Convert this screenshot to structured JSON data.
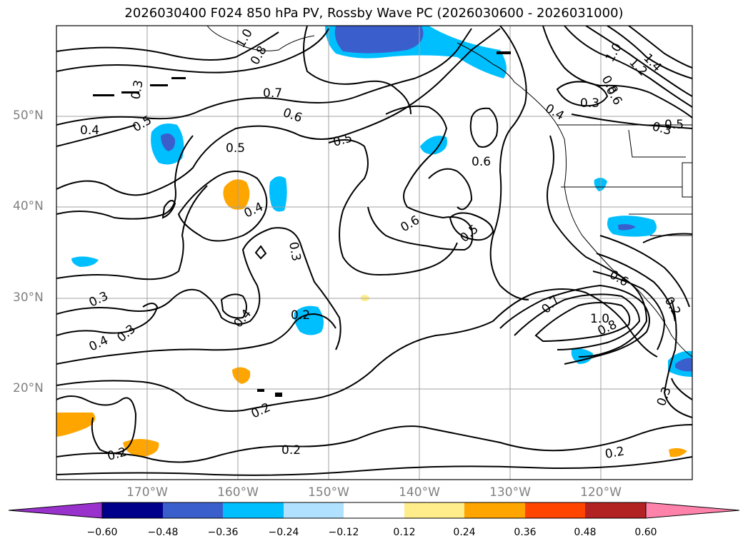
{
  "title": "2026030400 F024 850 hPa PV, Rossby Wave PC (2026030600 - 2026031000)",
  "lat_labels": [
    "50°N",
    "40°N",
    "30°N",
    "20°N"
  ],
  "lon_labels": [
    "170°W",
    "160°W",
    "150°W",
    "140°W",
    "130°W",
    "120°W"
  ],
  "colorbar": {
    "ticks": [
      "−0.60",
      "−0.48",
      "−0.36",
      "−0.24",
      "−0.12",
      "0.12",
      "0.24",
      "0.36",
      "0.48",
      "0.60"
    ],
    "colors": [
      "#9932cc",
      "#00008b",
      "#3a5fcd",
      "#00bfff",
      "#b0e2ff",
      "#ffffff",
      "#ffec8b",
      "#ffa500",
      "#ff4500",
      "#b22222",
      "#ff82ab"
    ]
  },
  "contour_labels": [
    {
      "id": "c1",
      "text": "0.8"
    },
    {
      "id": "c2",
      "text": "1.0"
    },
    {
      "id": "c3",
      "text": "0.3"
    },
    {
      "id": "c4",
      "text": "0.7"
    },
    {
      "id": "c5",
      "text": "0.6"
    },
    {
      "id": "c6",
      "text": "0.4"
    },
    {
      "id": "c7",
      "text": "0.5"
    },
    {
      "id": "c8",
      "text": "0.5"
    },
    {
      "id": "c9",
      "text": "0.5"
    },
    {
      "id": "c10",
      "text": "0.6"
    },
    {
      "id": "c11",
      "text": "0.4"
    },
    {
      "id": "c12",
      "text": "0.3"
    },
    {
      "id": "c13",
      "text": "0.6"
    },
    {
      "id": "c14",
      "text": "0.5"
    },
    {
      "id": "c15",
      "text": "0.3"
    },
    {
      "id": "c16",
      "text": "0.2"
    },
    {
      "id": "c17",
      "text": "0.4"
    },
    {
      "id": "c18",
      "text": "0.3"
    },
    {
      "id": "c19",
      "text": "0.4"
    },
    {
      "id": "c20",
      "text": "0.3"
    },
    {
      "id": "c21",
      "text": "0.2"
    },
    {
      "id": "c22",
      "text": "0.2"
    },
    {
      "id": "c23",
      "text": "0.2"
    },
    {
      "id": "c24",
      "text": "0.2"
    },
    {
      "id": "c25",
      "text": "0.7"
    },
    {
      "id": "c26",
      "text": "1.0"
    },
    {
      "id": "c27",
      "text": "0.8"
    },
    {
      "id": "c28",
      "text": "0.6"
    },
    {
      "id": "c29",
      "text": "0.2"
    },
    {
      "id": "c30",
      "text": "0.3"
    },
    {
      "id": "c31",
      "text": "0.4"
    },
    {
      "id": "c32",
      "text": "0.3"
    },
    {
      "id": "c33",
      "text": "1.4"
    },
    {
      "id": "c34",
      "text": "1.2"
    },
    {
      "id": "c35",
      "text": "1.0"
    },
    {
      "id": "c36",
      "text": "0.8"
    },
    {
      "id": "c37",
      "text": "0.6"
    },
    {
      "id": "c38",
      "text": "0.5"
    }
  ]
}
